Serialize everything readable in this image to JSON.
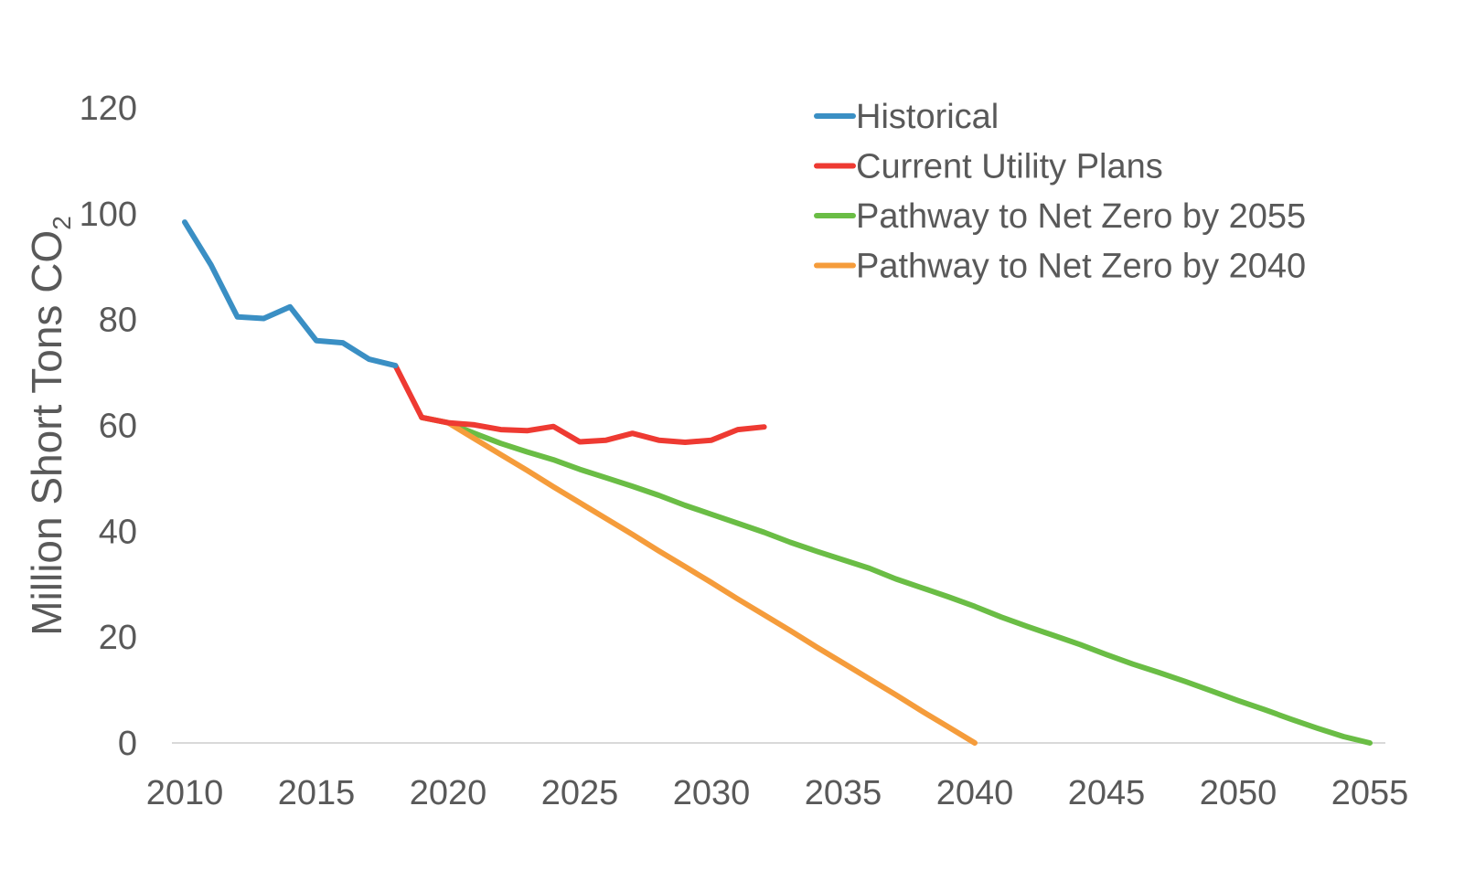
{
  "chart_data": {
    "type": "line",
    "title": "",
    "xlabel": "",
    "ylabel": "Million Short Tons CO",
    "ylabel_subscript": "2",
    "xlim": [
      2010,
      2055
    ],
    "ylim": [
      0,
      120
    ],
    "x_ticks": [
      2010,
      2015,
      2020,
      2025,
      2030,
      2035,
      2040,
      2045,
      2050,
      2055
    ],
    "y_ticks": [
      0,
      20,
      40,
      60,
      80,
      100,
      120
    ],
    "grid": false,
    "legend_position": "top-right",
    "series": [
      {
        "name": "Historical",
        "color": "#3a8fc4",
        "x": [
          2010,
          2011,
          2012,
          2013,
          2014,
          2015,
          2016,
          2017,
          2018
        ],
        "values": [
          98.4,
          90.3,
          80.5,
          80.2,
          82.4,
          76.0,
          75.6,
          72.5,
          71.3
        ]
      },
      {
        "name": "Current Utility Plans",
        "color": "#ee3a32",
        "x": [
          2018,
          2019,
          2020,
          2021,
          2022,
          2023,
          2024,
          2025,
          2026,
          2027,
          2028,
          2029,
          2030,
          2031,
          2032
        ],
        "values": [
          71.3,
          61.5,
          60.5,
          60.1,
          59.2,
          59.0,
          59.8,
          56.9,
          57.2,
          58.5,
          57.2,
          56.8,
          57.2,
          59.2,
          59.7
        ]
      },
      {
        "name": "Pathway to Net Zero by 2055",
        "color": "#6abd45",
        "x": [
          2019,
          2020,
          2021,
          2022,
          2023,
          2024,
          2025,
          2026,
          2027,
          2028,
          2029,
          2030,
          2031,
          2032,
          2033,
          2034,
          2035,
          2036,
          2037,
          2038,
          2039,
          2040,
          2041,
          2042,
          2043,
          2044,
          2045,
          2046,
          2047,
          2048,
          2049,
          2050,
          2051,
          2052,
          2053,
          2054,
          2055
        ],
        "values": [
          61.5,
          60.5,
          58.5,
          56.6,
          55.0,
          53.5,
          51.7,
          50.1,
          48.5,
          46.8,
          44.9,
          43.2,
          41.5,
          39.8,
          37.9,
          36.2,
          34.6,
          33.0,
          31.0,
          29.3,
          27.6,
          25.8,
          23.8,
          22.0,
          20.3,
          18.6,
          16.7,
          14.9,
          13.3,
          11.6,
          9.8,
          8.0,
          6.3,
          4.5,
          2.8,
          1.2,
          0.0
        ]
      },
      {
        "name": "Pathway to Net Zero by 2040",
        "color": "#f59c3b",
        "x": [
          2019,
          2020,
          2021,
          2022,
          2023,
          2024,
          2025,
          2026,
          2027,
          2028,
          2029,
          2030,
          2031,
          2032,
          2033,
          2034,
          2035,
          2036,
          2037,
          2038,
          2039,
          2040
        ],
        "values": [
          61.5,
          60.5,
          57.5,
          54.5,
          51.5,
          48.4,
          45.4,
          42.4,
          39.4,
          36.3,
          33.3,
          30.3,
          27.2,
          24.2,
          21.2,
          18.1,
          15.1,
          12.1,
          9.1,
          6.0,
          3.0,
          0.0
        ]
      }
    ]
  }
}
